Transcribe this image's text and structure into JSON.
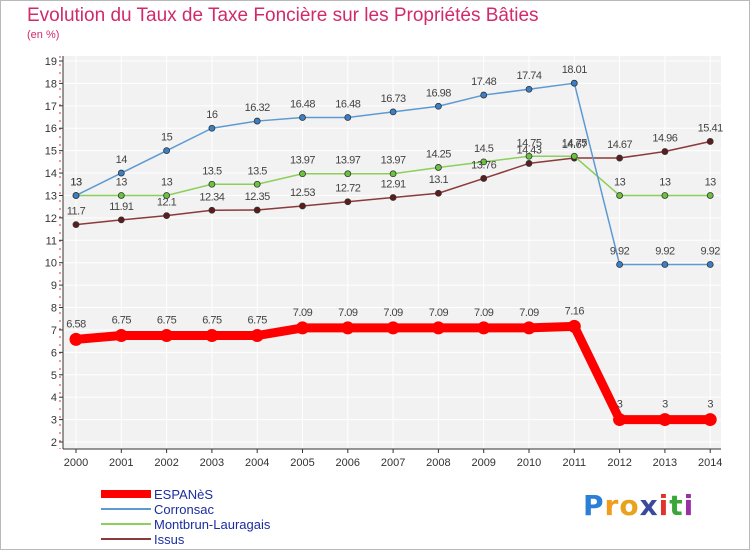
{
  "header": {
    "title": "Evolution du Taux de Taxe Foncière sur les Propriétés Bâties",
    "unit": "(en %)"
  },
  "logo": {
    "text": "Proxiti",
    "letters": [
      "P",
      "r",
      "o",
      "x",
      "i",
      "t",
      "i"
    ],
    "colors": [
      "#2b7fd6",
      "#f39b1c",
      "#e8a21c",
      "#3c4a9e",
      "#e0332e",
      "#3aa639",
      "#9c2fa8"
    ]
  },
  "chart_data": {
    "type": "line",
    "title": "Evolution du Taux de Taxe Foncière sur les Propriétés Bâties",
    "ylabel": "(en %)",
    "xlabel": "",
    "categories": [
      "2000",
      "2001",
      "2002",
      "2003",
      "2004",
      "2005",
      "2006",
      "2007",
      "2008",
      "2009",
      "2010",
      "2011",
      "2012",
      "2013",
      "2014"
    ],
    "ylim": [
      2,
      19
    ],
    "yticks": [
      2,
      3,
      4,
      5,
      6,
      7,
      8,
      9,
      10,
      11,
      12,
      13,
      14,
      15,
      16,
      17,
      18,
      19
    ],
    "grid": true,
    "legend_position": "bottom-left",
    "series": [
      {
        "name": "ESPANèS",
        "color": "#ff0000",
        "marker": "#ff0000",
        "thick": true,
        "values": [
          6.58,
          6.75,
          6.75,
          6.75,
          6.75,
          7.09,
          7.09,
          7.09,
          7.09,
          7.09,
          7.09,
          7.16,
          3,
          3,
          3
        ],
        "labels": [
          "6.58",
          "6.75",
          "6.75",
          "6.75",
          "6.75",
          "7.09",
          "7.09",
          "7.09",
          "7.09",
          "7.09",
          "7.09",
          "7.16",
          "3",
          "3",
          "3"
        ]
      },
      {
        "name": "Corronsac",
        "color": "#5d9ad2",
        "marker": "#3a7fc7",
        "thick": false,
        "values": [
          13,
          14,
          15,
          16,
          16.32,
          16.48,
          16.48,
          16.73,
          16.98,
          17.48,
          17.74,
          18.01,
          9.92,
          9.92,
          9.92
        ],
        "labels": [
          "13",
          "14",
          "15",
          "16",
          "16.32",
          "16.48",
          "16.48",
          "16.73",
          "16.98",
          "17.48",
          "17.74",
          "18.01",
          "9.92",
          "9.92",
          "9.92"
        ]
      },
      {
        "name": "Montbrun-Lauragais",
        "color": "#8ccf5a",
        "marker": "#6ac23e",
        "thick": false,
        "values": [
          13,
          13,
          13,
          13.5,
          13.5,
          13.97,
          13.97,
          13.97,
          14.25,
          14.5,
          14.75,
          14.75,
          13,
          13,
          13
        ],
        "labels": [
          "13",
          "13",
          "13",
          "13.5",
          "13.5",
          "13.97",
          "13.97",
          "13.97",
          "14.25",
          "14.5",
          "14.75",
          "14.75",
          "13",
          "13",
          "13"
        ]
      },
      {
        "name": "Issus",
        "color": "#8a3a3a",
        "marker": "#5e1c1c",
        "thick": false,
        "values": [
          11.7,
          11.91,
          12.1,
          12.34,
          12.35,
          12.53,
          12.72,
          12.91,
          13.1,
          13.76,
          14.43,
          14.67,
          14.67,
          14.96,
          15.41
        ],
        "labels": [
          "11.7",
          "11.91",
          "12.1",
          "12.34",
          "12.35",
          "12.53",
          "12.72",
          "12.91",
          "13.1",
          "13.76",
          "14.43",
          "14.67",
          "14.67",
          "14.96",
          "15.41"
        ]
      }
    ]
  }
}
